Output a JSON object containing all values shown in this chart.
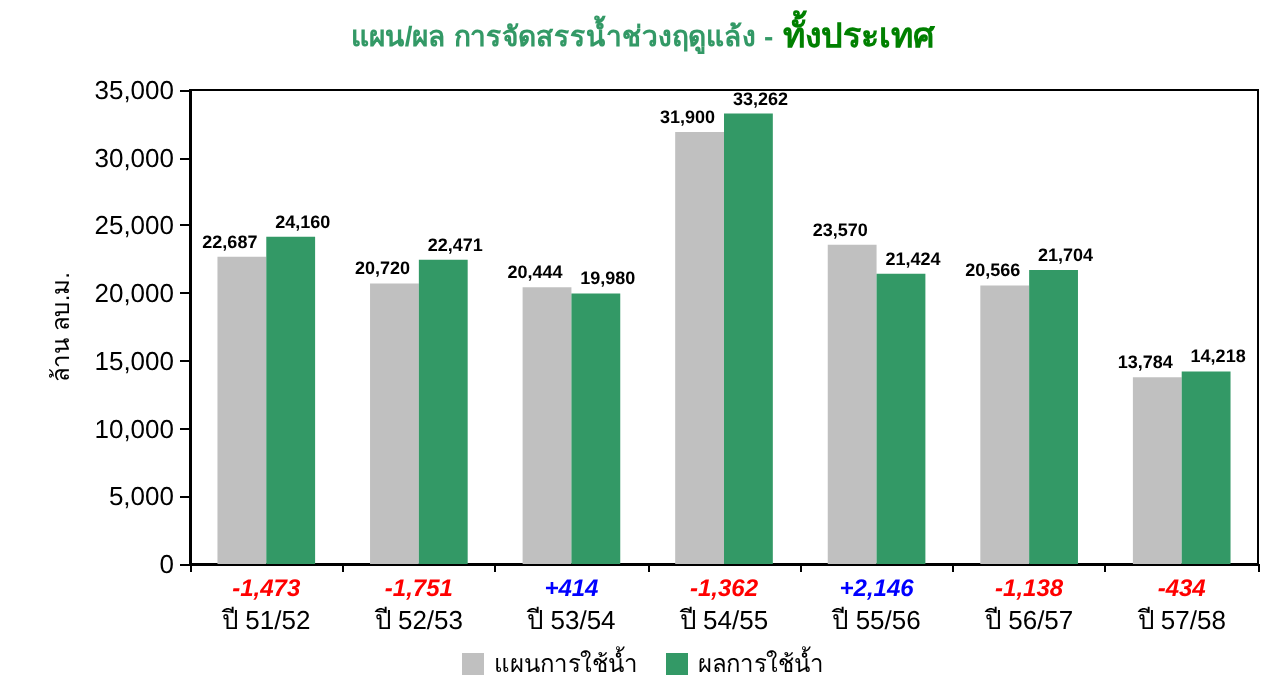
{
  "chart_data": {
    "type": "bar",
    "title": "แผน/ผล การจัดสรรน้ำช่วงฤดูแล้ง -",
    "subtitle": "ทั้งประเทศ",
    "ylabel": "ล้าน ลบ.ม.",
    "categories": [
      "ปี 51/52",
      "ปี 52/53",
      "ปี 53/54",
      "ปี 54/55",
      "ปี 55/56",
      "ปี 56/57",
      "ปี 57/58"
    ],
    "series": [
      {
        "name": "แผนการใช้น้ำ",
        "color": "#c0c0c0",
        "values": [
          22687,
          20720,
          20444,
          31900,
          23570,
          20566,
          13784
        ],
        "value_labels": [
          "22,687",
          "20,720",
          "20,444",
          "31,900",
          "23,570",
          "20,566",
          "13,784"
        ]
      },
      {
        "name": "ผลการใช้น้ำ",
        "color": "#339966",
        "values": [
          24160,
          22471,
          19980,
          33262,
          21424,
          21704,
          14218
        ],
        "value_labels": [
          "24,160",
          "22,471",
          "19,980",
          "33,262",
          "21,424",
          "21,704",
          "14,218"
        ]
      }
    ],
    "annotations": [
      "-1,473",
      "-1,751",
      "+414",
      "-1,362",
      "+2,146",
      "-1,138",
      "-434"
    ],
    "ylim": [
      0,
      35000
    ],
    "yticks": [
      {
        "value": 0,
        "label": "0"
      },
      {
        "value": 5000,
        "label": "5,000"
      },
      {
        "value": 10000,
        "label": "10,000"
      },
      {
        "value": 15000,
        "label": "15,000"
      },
      {
        "value": 20000,
        "label": "20,000"
      },
      {
        "value": 25000,
        "label": "25,000"
      },
      {
        "value": 30000,
        "label": "30,000"
      },
      {
        "value": 35000,
        "label": "35,000"
      }
    ],
    "grid": false,
    "legend": "bottom"
  }
}
